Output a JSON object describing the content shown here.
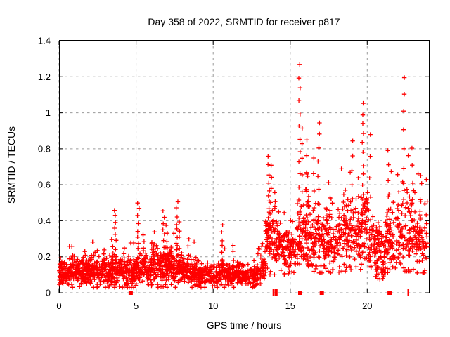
{
  "chart_data": {
    "type": "scatter",
    "title": "Day 358 of 2022, SRMTID for receiver p817",
    "xlabel": "GPS time / hours",
    "ylabel": "SRMTID / TECUs",
    "xlim": [
      0,
      24
    ],
    "ylim": [
      0,
      1.4
    ],
    "xticks": {
      "values": [
        0,
        5,
        10,
        15,
        20
      ],
      "labels": [
        "0",
        "5",
        "10",
        "15",
        "20"
      ]
    },
    "yticks": {
      "values": [
        0,
        0.2,
        0.4,
        0.6,
        0.8,
        1.0,
        1.2,
        1.4
      ],
      "labels": [
        "0",
        "0.2",
        "0.4",
        "0.6",
        "0.8",
        "1",
        "1.2",
        "1.4"
      ]
    },
    "grid": "dashed",
    "legend": "none",
    "plot_bg": "#ffffff",
    "axis_color": "#000000",
    "grid_color": "#9a9a9a",
    "marker": {
      "shape": "plus",
      "color": "#ff0000",
      "size": 7
    },
    "seed": 358817,
    "bands_columns": [
      "x0",
      "x1",
      "n",
      "mean",
      "sd",
      "min"
    ],
    "bands": [
      [
        0,
        1,
        110,
        0.125,
        0.045,
        0.03
      ],
      [
        1,
        2,
        110,
        0.115,
        0.04,
        0.03
      ],
      [
        2,
        3,
        110,
        0.12,
        0.045,
        0.03
      ],
      [
        3,
        4,
        110,
        0.125,
        0.05,
        0.03
      ],
      [
        4,
        5,
        105,
        0.115,
        0.045,
        0.03
      ],
      [
        5,
        6,
        110,
        0.13,
        0.05,
        0.03
      ],
      [
        6,
        7,
        110,
        0.14,
        0.055,
        0.03
      ],
      [
        7,
        8,
        110,
        0.14,
        0.055,
        0.03
      ],
      [
        8,
        9,
        105,
        0.12,
        0.045,
        0.03
      ],
      [
        9,
        10,
        100,
        0.1,
        0.035,
        0.03
      ],
      [
        10,
        11,
        100,
        0.1,
        0.04,
        0.03
      ],
      [
        11,
        12,
        100,
        0.1,
        0.04,
        0.03
      ],
      [
        12,
        12.9,
        85,
        0.09,
        0.03,
        0.03
      ],
      [
        12.9,
        13.4,
        55,
        0.15,
        0.055,
        0.05
      ],
      [
        13.4,
        14.4,
        105,
        0.28,
        0.09,
        0.1
      ],
      [
        14.4,
        15.4,
        95,
        0.24,
        0.07,
        0.1
      ],
      [
        15.4,
        16.3,
        95,
        0.3,
        0.1,
        0.11
      ],
      [
        16.3,
        17.3,
        95,
        0.28,
        0.1,
        0.11
      ],
      [
        17.3,
        18.3,
        90,
        0.28,
        0.1,
        0.11
      ],
      [
        18.3,
        19.4,
        95,
        0.33,
        0.12,
        0.12
      ],
      [
        19.4,
        20.1,
        75,
        0.35,
        0.13,
        0.13
      ],
      [
        20.1,
        21.1,
        85,
        0.26,
        0.09,
        0.09
      ],
      [
        20.55,
        21.25,
        25,
        0.12,
        0.03,
        0.06
      ],
      [
        21.1,
        22.1,
        90,
        0.3,
        0.11,
        0.11
      ],
      [
        22.1,
        23.1,
        90,
        0.33,
        0.12,
        0.12
      ],
      [
        23.1,
        23.9,
        75,
        0.3,
        0.1,
        0.11
      ]
    ],
    "spikes_columns": [
      "x",
      "y0",
      "y1",
      "n"
    ],
    "spikes": [
      [
        3.45,
        0.15,
        0.3,
        5
      ],
      [
        3.65,
        0.18,
        0.46,
        9
      ],
      [
        5.15,
        0.2,
        0.5,
        9
      ],
      [
        5.5,
        0.14,
        0.32,
        5
      ],
      [
        6.8,
        0.18,
        0.46,
        9
      ],
      [
        7.0,
        0.15,
        0.38,
        6
      ],
      [
        7.65,
        0.2,
        0.5,
        9
      ],
      [
        7.85,
        0.15,
        0.4,
        6
      ],
      [
        8.4,
        0.12,
        0.3,
        5
      ],
      [
        10.6,
        0.12,
        0.37,
        8
      ],
      [
        11.3,
        0.1,
        0.26,
        5
      ],
      [
        13.6,
        0.28,
        0.75,
        11
      ],
      [
        13.75,
        0.25,
        0.7,
        8
      ],
      [
        13.95,
        0.2,
        0.55,
        6
      ],
      [
        15.6,
        0.38,
        1.27,
        14
      ],
      [
        15.75,
        0.3,
        0.92,
        8
      ],
      [
        16.05,
        0.3,
        0.85,
        7
      ],
      [
        16.55,
        0.3,
        0.75,
        6
      ],
      [
        16.85,
        0.35,
        0.95,
        9
      ],
      [
        17.55,
        0.28,
        0.62,
        5
      ],
      [
        18.5,
        0.25,
        0.55,
        5
      ],
      [
        19.05,
        0.35,
        0.85,
        7
      ],
      [
        19.7,
        0.38,
        1.05,
        13
      ],
      [
        20.2,
        0.3,
        0.87,
        6
      ],
      [
        21.35,
        0.28,
        0.8,
        7
      ],
      [
        22.0,
        0.28,
        0.65,
        5
      ],
      [
        22.35,
        0.5,
        1.2,
        8
      ],
      [
        22.9,
        0.3,
        0.8,
        6
      ],
      [
        23.5,
        0.25,
        0.6,
        5
      ],
      [
        23.85,
        0.28,
        0.62,
        4
      ]
    ],
    "axis_markers": {
      "squares": [
        4.65,
        15.65,
        17.05,
        21.45
      ],
      "bars": [
        13.9,
        14.02,
        14.14,
        22.65
      ]
    }
  }
}
